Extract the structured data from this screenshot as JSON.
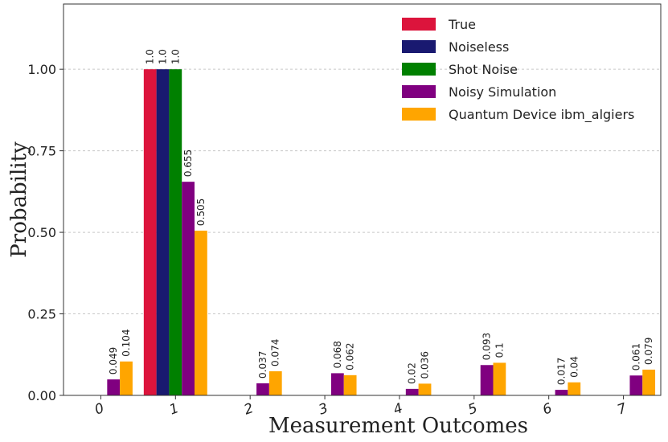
{
  "chart_data": {
    "type": "bar",
    "title": "",
    "xlabel": "Measurement Outcomes",
    "ylabel": "Probability",
    "ylim": [
      0,
      1.2
    ],
    "yticks": [
      0.0,
      0.25,
      0.5,
      0.75,
      1.0
    ],
    "ytick_labels": [
      "0.00",
      "0.25",
      "0.50",
      "0.75",
      "1.00"
    ],
    "grid": true,
    "legend_position": "top-right",
    "categories": [
      "0",
      "1",
      "2",
      "3",
      "4",
      "5",
      "6",
      "7"
    ],
    "series": [
      {
        "name": "True",
        "color": "#dc143c",
        "values": [
          0,
          1.0,
          0,
          0,
          0,
          0,
          0,
          0
        ],
        "labels": [
          "",
          "1.0",
          "",
          "",
          "",
          "",
          "",
          ""
        ]
      },
      {
        "name": "Noiseless",
        "color": "#191970",
        "values": [
          0,
          1.0,
          0,
          0,
          0,
          0,
          0,
          0
        ],
        "labels": [
          "",
          "1.0",
          "",
          "",
          "",
          "",
          "",
          ""
        ]
      },
      {
        "name": "Shot Noise",
        "color": "#008000",
        "values": [
          0,
          1.0,
          0,
          0,
          0,
          0,
          0,
          0
        ],
        "labels": [
          "",
          "1.0",
          "",
          "",
          "",
          "",
          "",
          ""
        ]
      },
      {
        "name": "Noisy Simulation",
        "color": "#800080",
        "values": [
          0.049,
          0.655,
          0.037,
          0.068,
          0.02,
          0.093,
          0.017,
          0.061
        ],
        "labels": [
          "0.049",
          "0.655",
          "0.037",
          "0.068",
          "0.02",
          "0.093",
          "0.017",
          "0.061"
        ]
      },
      {
        "name": "Quantum Device ibm_algiers",
        "color": "#ffa500",
        "values": [
          0.104,
          0.505,
          0.074,
          0.062,
          0.036,
          0.1,
          0.04,
          0.079
        ],
        "labels": [
          "0.104",
          "0.505",
          "0.074",
          "0.062",
          "0.036",
          "0.1",
          "0.04",
          "0.079"
        ]
      }
    ]
  }
}
